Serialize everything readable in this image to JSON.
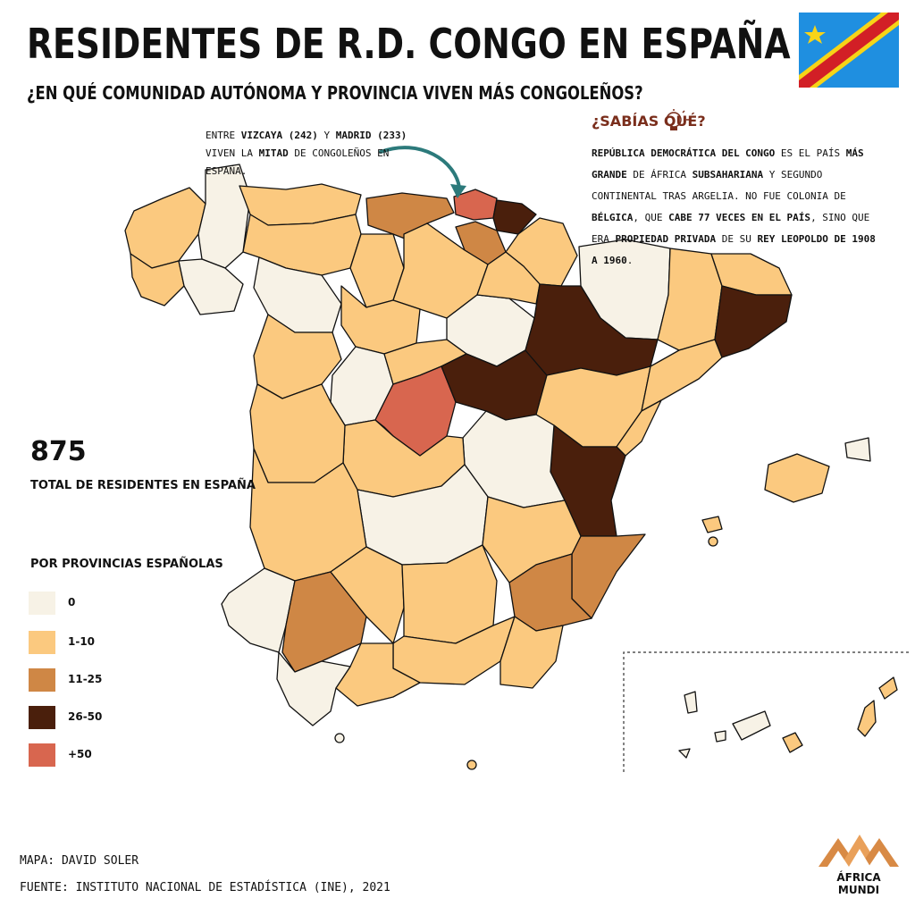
{
  "title": "RESIDENTES DE R.D. CONGO EN ESPAÑA",
  "subtitle": "¿EN QUÉ COMUNIDAD AUTÓNOMA Y PROVINCIA VIVEN MÁS CONGOLEÑOS?",
  "callout": {
    "t1": "ENTRE ",
    "b1": "VIZCAYA (242)",
    "t2": " Y ",
    "b2": "MADRID (233)",
    "t3": " VIVEN LA ",
    "b3": "MITAD",
    "t4": " DE CONGOLEÑOS EN ESPAÑA."
  },
  "did_you_know": {
    "title": "¿SABÍAS QUÉ?",
    "b1": "REPÚBLICA DEMOCRÁTICA DEL CONGO",
    "t1": " ES EL PAÍS ",
    "b2": "MÁS GRANDE",
    "t2": " DE ÁFRICA ",
    "b3": "SUBSAHARIANA",
    "t3": " Y SEGUNDO CONTINENTAL TRAS ARGELIA. NO FUE COLONIA DE ",
    "b4": "BÉLGICA",
    "t4": ", QUE ",
    "b5": "CABE 77 VECES EN EL PAÍS",
    "t5": ", SINO QUE ERA ",
    "b6": "PROPIEDAD PRIVADA",
    "t6": " DE SU ",
    "b7": "REY LEOPOLDO DE 1908 A 1960",
    "t7": "."
  },
  "total": {
    "number": "875",
    "label": "TOTAL DE RESIDENTES EN ESPAÑA"
  },
  "legend": {
    "title": "POR PROVINCIAS ESPAÑOLAS",
    "items": [
      {
        "label": "0",
        "color": "#f7f2e6"
      },
      {
        "label": "1-10",
        "color": "#fbc97f"
      },
      {
        "label": "11-25",
        "color": "#cf8745"
      },
      {
        "label": "26-50",
        "color": "#4a1f0c"
      },
      {
        "label": "+50",
        "color": "#d8664f"
      }
    ]
  },
  "credits": {
    "map": "MAPA: DAVID SOLER",
    "source": "FUENTE: INSTITUTO NACIONAL DE ESTADÍSTICA (INE), 2021"
  },
  "logo": {
    "line1": "ÁFRICA",
    "line2": "MUNDI"
  },
  "colors": {
    "none": "#f7f2e6",
    "low": "#fbc97f",
    "mid": "#cf8745",
    "high": "#4a1f0c",
    "top": "#d8664f",
    "arrow": "#2c7a7b",
    "flag_blue": "#1f8fe0",
    "flag_red": "#d21f26",
    "flag_yellow": "#f7d417"
  }
}
